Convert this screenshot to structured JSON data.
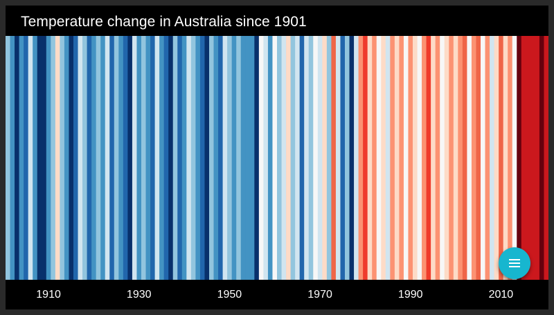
{
  "title": "Temperature change in Australia since 1901",
  "chart_data": {
    "type": "heatmap",
    "title": "Temperature change in Australia since 1901",
    "x_range": [
      1901,
      2020
    ],
    "tick_labels": [
      "1910",
      "1930",
      "1950",
      "1970",
      "1990",
      "2010"
    ],
    "tick_values": [
      1910,
      1930,
      1950,
      1970,
      1990,
      2010
    ],
    "years": [
      1901,
      1902,
      1903,
      1904,
      1905,
      1906,
      1907,
      1908,
      1909,
      1910,
      1911,
      1912,
      1913,
      1914,
      1915,
      1916,
      1917,
      1918,
      1919,
      1920,
      1921,
      1922,
      1923,
      1924,
      1925,
      1926,
      1927,
      1928,
      1929,
      1930,
      1931,
      1932,
      1933,
      1934,
      1935,
      1936,
      1937,
      1938,
      1939,
      1940,
      1941,
      1942,
      1943,
      1944,
      1945,
      1946,
      1947,
      1948,
      1949,
      1950,
      1951,
      1952,
      1953,
      1954,
      1955,
      1956,
      1957,
      1958,
      1959,
      1960,
      1961,
      1962,
      1963,
      1964,
      1965,
      1966,
      1967,
      1968,
      1969,
      1970,
      1971,
      1972,
      1973,
      1974,
      1975,
      1976,
      1977,
      1978,
      1979,
      1980,
      1981,
      1982,
      1983,
      1984,
      1985,
      1986,
      1987,
      1988,
      1989,
      1990,
      1991,
      1992,
      1993,
      1994,
      1995,
      1996,
      1997,
      1998,
      1999,
      2000,
      2001,
      2002,
      2003,
      2004,
      2005,
      2006,
      2007,
      2008,
      2009,
      2010,
      2011,
      2012,
      2013,
      2014,
      2015,
      2016,
      2017,
      2018,
      2019,
      2020
    ],
    "colors": [
      "#92c5de",
      "#4393c3",
      "#08306b",
      "#4393c3",
      "#2166ac",
      "#d1e5f0",
      "#4393c3",
      "#08306b",
      "#08306b",
      "#4393c3",
      "#92c5de",
      "#fddbc7",
      "#92c5de",
      "#4393c3",
      "#08306b",
      "#2166ac",
      "#d1e5f0",
      "#92c5de",
      "#2166ac",
      "#4393c3",
      "#92c5de",
      "#4393c3",
      "#d1e5f0",
      "#2166ac",
      "#92c5de",
      "#4393c3",
      "#2166ac",
      "#08306b",
      "#d1e5f0",
      "#4393c3",
      "#92c5de",
      "#4393c3",
      "#2166ac",
      "#d1e5f0",
      "#4393c3",
      "#2166ac",
      "#08306b",
      "#92c5de",
      "#2166ac",
      "#4393c3",
      "#d1e5f0",
      "#92c5de",
      "#4393c3",
      "#2166ac",
      "#08306b",
      "#92c5de",
      "#4393c3",
      "#2166ac",
      "#d1e5f0",
      "#92c5de",
      "#4393c3",
      "#92c5de",
      "#4393c3",
      "#4393c3",
      "#4393c3",
      "#08306b",
      "#f7f7f7",
      "#d1e5f0",
      "#4393c3",
      "#f7f7f7",
      "#92c5de",
      "#d1e5f0",
      "#fddbc7",
      "#92c5de",
      "#d1e5f0",
      "#2166ac",
      "#d1e5f0",
      "#92c5de",
      "#f7f7f7",
      "#d1e5f0",
      "#fddbc7",
      "#92c5de",
      "#ef6548",
      "#d1e5f0",
      "#2166ac",
      "#92c5de",
      "#08306b",
      "#d1e5f0",
      "#fc9272",
      "#ef3b2c",
      "#fddbc7",
      "#fc9272",
      "#f7f7f7",
      "#fddbc7",
      "#d1e5f0",
      "#fc9272",
      "#fddbc7",
      "#fc9272",
      "#f7f7f7",
      "#fc9272",
      "#fddbc7",
      "#f7f7f7",
      "#fc9272",
      "#ef3b2c",
      "#fddbc7",
      "#fc9272",
      "#f7f7f7",
      "#fddbc7",
      "#fc9272",
      "#fddbc7",
      "#fc9272",
      "#ef6548",
      "#f7f7f7",
      "#fc9272",
      "#ef6548",
      "#f7f7f7",
      "#fc9272",
      "#d1e5f0",
      "#fddbc7",
      "#ef6548",
      "#fddbc7",
      "#fc9272",
      "#f7f7f7",
      "#67000d",
      "#cb181d",
      "#cb181d",
      "#cb181d",
      "#cb181d",
      "#67000d",
      "#cb181d"
    ]
  },
  "fab": {
    "icon": "menu-icon",
    "color": "#17b6cf"
  }
}
